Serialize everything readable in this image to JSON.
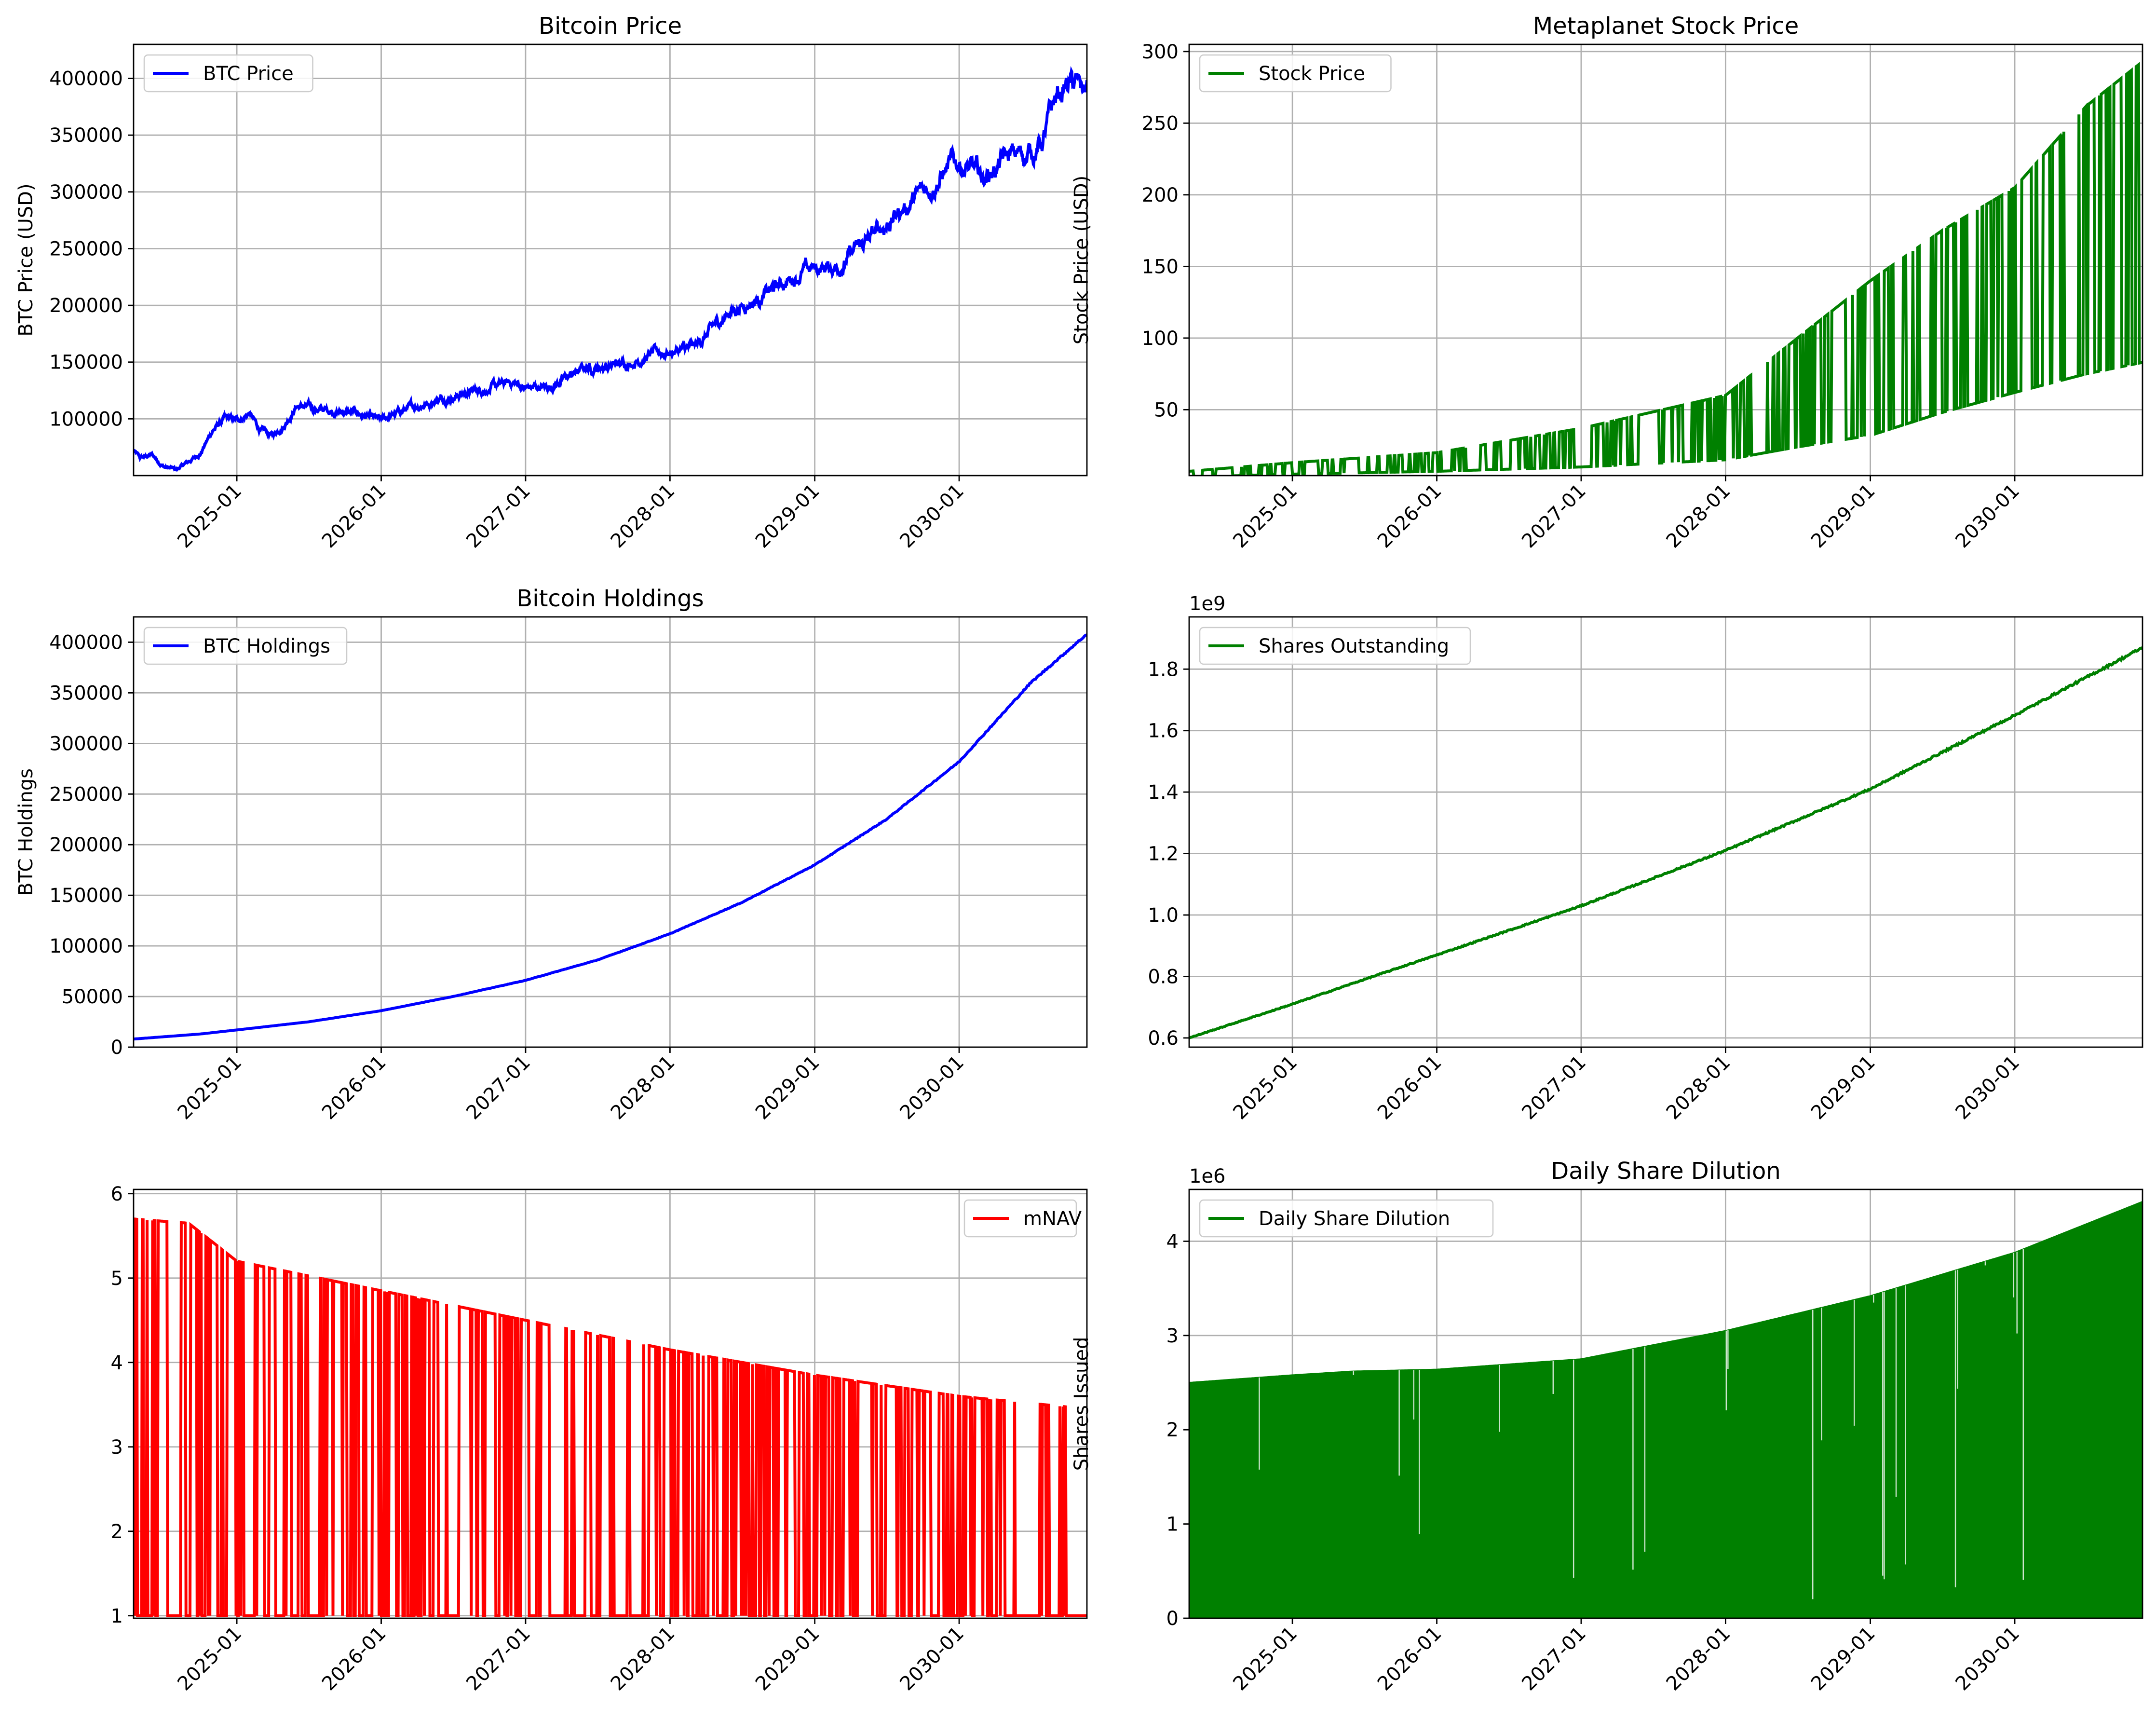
{
  "x_ticks": [
    "2025-01",
    "2026-01",
    "2027-01",
    "2028-01",
    "2029-01",
    "2030-01"
  ],
  "chart_data": [
    {
      "type": "line",
      "title": "Bitcoin Price",
      "xlabel": "",
      "ylabel": "BTC Price (USD)",
      "x_range": [
        "2024-04-15",
        "2030-11-20"
      ],
      "ylim": [
        50000,
        430000
      ],
      "yticks": [
        100000,
        150000,
        200000,
        250000,
        300000,
        350000,
        400000
      ],
      "ytick_labels": [
        "100000",
        "150000",
        "200000",
        "250000",
        "300000",
        "350000",
        "400000"
      ],
      "grid": true,
      "legend": "upper left",
      "series": [
        {
          "name": "BTC Price",
          "color": "#0000ff",
          "x": [
            "2024-04-15",
            "2024-05-01",
            "2024-06-01",
            "2024-07-01",
            "2024-08-01",
            "2024-09-01",
            "2024-10-01",
            "2024-11-01",
            "2024-12-01",
            "2025-01-01",
            "2025-02-01",
            "2025-03-01",
            "2025-04-01",
            "2025-05-01",
            "2025-06-01",
            "2025-07-01",
            "2025-08-01",
            "2025-09-01",
            "2025-10-01",
            "2025-11-01",
            "2025-12-01",
            "2026-01-01",
            "2026-03-01",
            "2026-06-01",
            "2026-09-01",
            "2026-12-01",
            "2027-01-01",
            "2027-03-01",
            "2027-06-01",
            "2027-09-01",
            "2027-12-01",
            "2028-03-01",
            "2028-06-01",
            "2028-09-01",
            "2028-12-01",
            "2029-03-01",
            "2029-06-01",
            "2029-08-01",
            "2029-10-01",
            "2029-12-01",
            "2030-01-01",
            "2030-03-01",
            "2030-05-01",
            "2030-07-01",
            "2030-08-01",
            "2030-09-01",
            "2030-10-01",
            "2030-11-20"
          ],
          "values": [
            72000,
            65000,
            68000,
            58000,
            55000,
            62000,
            70000,
            90000,
            100000,
            98000,
            105000,
            90000,
            85000,
            95000,
            112000,
            110000,
            108000,
            107000,
            106000,
            105000,
            101000,
            98000,
            108000,
            118000,
            125000,
            132000,
            127000,
            128000,
            145000,
            148000,
            158000,
            162000,
            195000,
            210000,
            230000,
            235000,
            262000,
            282000,
            300000,
            320000,
            326000,
            312000,
            330000,
            335000,
            345000,
            380000,
            395000,
            390000
          ]
        }
      ]
    },
    {
      "type": "line",
      "title": "Metaplanet Stock Price",
      "xlabel": "",
      "ylabel": "Stock Price (USD)",
      "x_range": [
        "2024-04-15",
        "2030-11-20"
      ],
      "ylim": [
        4,
        305
      ],
      "yticks": [
        50,
        100,
        150,
        200,
        250,
        300
      ],
      "ytick_labels": [
        "50",
        "100",
        "150",
        "200",
        "250",
        "300"
      ],
      "grid": true,
      "legend": "upper left",
      "note_pattern": "oscillates between upper envelope and lower envelope",
      "series": [
        {
          "name": "Stock Price",
          "color": "#008000",
          "x_envelope": [
            "2024-04-15",
            "2025-01-01",
            "2026-01-01",
            "2027-01-01",
            "2028-01-01",
            "2028-07-01",
            "2029-01-01",
            "2029-07-01",
            "2030-01-01",
            "2030-07-01",
            "2030-11-20"
          ],
          "upper": [
            7,
            13,
            20,
            37,
            60,
            100,
            140,
            175,
            205,
            262,
            293
          ],
          "lower": [
            3,
            5,
            7,
            10,
            15,
            24,
            32,
            48,
            62,
            75,
            83
          ]
        }
      ]
    },
    {
      "type": "line",
      "title": "Bitcoin Holdings",
      "xlabel": "",
      "ylabel": "BTC Holdings",
      "x_range": [
        "2024-04-15",
        "2030-11-20"
      ],
      "ylim": [
        0,
        425000
      ],
      "yticks": [
        0,
        50000,
        100000,
        150000,
        200000,
        250000,
        300000,
        350000,
        400000
      ],
      "ytick_labels": [
        "0",
        "50000",
        "100000",
        "150000",
        "200000",
        "250000",
        "300000",
        "350000",
        "400000"
      ],
      "grid": true,
      "legend": "upper left",
      "series": [
        {
          "name": "BTC Holdings",
          "color": "#0000ff",
          "x": [
            "2024-04-15",
            "2024-10-01",
            "2025-01-01",
            "2025-07-01",
            "2026-01-01",
            "2026-07-01",
            "2027-01-01",
            "2027-07-01",
            "2028-01-01",
            "2028-07-01",
            "2029-01-01",
            "2029-07-01",
            "2030-01-01",
            "2030-07-01",
            "2030-11-20"
          ],
          "values": [
            8000,
            13000,
            17000,
            25000,
            36000,
            50000,
            66000,
            86000,
            112000,
            143000,
            180000,
            225000,
            282000,
            360000,
            408000
          ]
        }
      ]
    },
    {
      "type": "line",
      "title": "",
      "xlabel": "",
      "ylabel": "",
      "x_range": [
        "2024-04-15",
        "2030-11-20"
      ],
      "ylim": [
        0.57,
        1.97
      ],
      "yticks": [
        0.6,
        0.8,
        1.0,
        1.2,
        1.4,
        1.6,
        1.8
      ],
      "ytick_labels": [
        "0.6",
        "0.8",
        "1.0",
        "1.2",
        "1.4",
        "1.6",
        "1.8"
      ],
      "axis_offset_label": "1e9",
      "grid": true,
      "legend": "upper left",
      "series": [
        {
          "name": "Shares Outstanding",
          "color": "#008000",
          "x": [
            "2024-04-15",
            "2025-01-01",
            "2025-07-01",
            "2026-01-01",
            "2027-01-01",
            "2028-01-01",
            "2029-01-01",
            "2030-01-01",
            "2030-11-20"
          ],
          "values": [
            0.6,
            0.71,
            0.79,
            0.87,
            1.03,
            1.21,
            1.41,
            1.65,
            1.87
          ]
        }
      ]
    },
    {
      "type": "line",
      "title": "",
      "xlabel": "",
      "ylabel": "",
      "x_range": [
        "2024-04-15",
        "2030-11-20"
      ],
      "ylim": [
        0.97,
        6.05
      ],
      "yticks": [
        1,
        2,
        3,
        4,
        5,
        6
      ],
      "ytick_labels": [
        "1",
        "2",
        "3",
        "4",
        "5",
        "6"
      ],
      "grid": true,
      "legend": "upper right",
      "note_pattern": "oscillates between upper envelope and lower value 1",
      "series": [
        {
          "name": "mNAV",
          "color": "#ff0000",
          "x_envelope": [
            "2024-04-15",
            "2024-09-01",
            "2025-01-01",
            "2026-01-01",
            "2027-01-01",
            "2028-01-01",
            "2029-01-01",
            "2030-01-01",
            "2030-11-20"
          ],
          "upper": [
            5.7,
            5.65,
            5.2,
            4.85,
            4.5,
            4.15,
            3.85,
            3.6,
            3.45
          ],
          "lower": [
            1,
            1,
            1,
            1,
            1,
            1,
            1,
            1,
            1
          ]
        }
      ]
    },
    {
      "type": "area",
      "title": "Daily Share Dilution",
      "xlabel": "",
      "ylabel": "Shares Issued",
      "x_range": [
        "2024-04-15",
        "2030-11-20"
      ],
      "ylim": [
        0,
        4.55
      ],
      "yticks": [
        0,
        1,
        2,
        3,
        4
      ],
      "ytick_labels": [
        "0",
        "1",
        "2",
        "3",
        "4"
      ],
      "axis_offset_label": "1e6",
      "grid": true,
      "legend": "upper left",
      "series": [
        {
          "name": "Daily Share Dilution",
          "color": "#008000",
          "x": [
            "2024-04-15",
            "2025-01-01",
            "2025-06-01",
            "2026-01-01",
            "2027-01-01",
            "2028-01-01",
            "2029-01-01",
            "2030-01-01",
            "2030-11-20"
          ],
          "values": [
            2.5,
            2.58,
            2.62,
            2.64,
            2.75,
            3.05,
            3.42,
            3.88,
            4.42
          ]
        }
      ]
    }
  ]
}
